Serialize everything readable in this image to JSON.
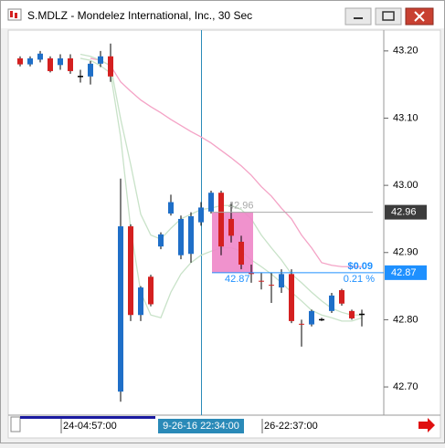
{
  "chart_data": {
    "type": "candlestick",
    "title": "S.MDLZ - Mondelez International, Inc., 30 Sec",
    "categories": [
      null,
      null,
      null,
      null,
      "24-04:57:00",
      null,
      null,
      null,
      null,
      null,
      null,
      null,
      null,
      null,
      null,
      null,
      null,
      null,
      "9-26-16 22:34:00",
      null,
      null,
      null,
      null,
      null,
      "26-22:37:00",
      null,
      null,
      null,
      null,
      null,
      null,
      null,
      null,
      null,
      null
    ],
    "open": [
      43.189,
      43.18,
      43.187,
      43.189,
      43.179,
      43.189,
      43.162,
      43.162,
      43.181,
      43.192,
      42.693,
      42.939,
      42.807,
      42.864,
      42.909,
      42.958,
      42.896,
      42.898,
      42.945,
      42.961,
      42.989,
      42.95,
      42.916,
      42.87,
      42.858,
      42.852,
      42.848,
      42.868,
      42.794,
      42.793,
      42.8,
      42.813,
      42.844,
      42.813,
      42.808
    ],
    "high": [
      43.192,
      43.192,
      43.2,
      43.192,
      43.195,
      43.195,
      43.172,
      43.185,
      43.2,
      43.211,
      43.01,
      42.942,
      42.85,
      42.867,
      42.93,
      42.986,
      42.955,
      42.96,
      42.975,
      42.992,
      42.992,
      42.975,
      42.925,
      42.882,
      42.87,
      42.87,
      42.875,
      42.875,
      42.8,
      42.815,
      42.803,
      42.84,
      42.846,
      42.815,
      42.815
    ],
    "low": [
      43.177,
      43.177,
      43.183,
      43.168,
      43.172,
      43.166,
      43.153,
      43.15,
      43.176,
      43.154,
      42.678,
      42.798,
      42.798,
      42.82,
      42.905,
      42.955,
      42.89,
      42.885,
      42.94,
      42.958,
      42.896,
      42.915,
      42.875,
      42.855,
      42.845,
      42.825,
      42.84,
      42.795,
      42.76,
      42.79,
      42.798,
      42.81,
      42.821,
      42.8,
      42.79
    ],
    "close": [
      43.18,
      43.189,
      43.196,
      43.17,
      43.189,
      43.17,
      43.162,
      43.181,
      43.192,
      43.162,
      42.939,
      42.807,
      42.848,
      42.823,
      42.927,
      42.975,
      42.95,
      42.954,
      42.967,
      42.989,
      42.909,
      42.925,
      42.882,
      42.868,
      42.857,
      42.851,
      42.868,
      42.798,
      42.793,
      42.813,
      42.8,
      42.836,
      42.824,
      42.802,
      42.808
    ],
    "up_color": "#1f6fc8",
    "down_color": "#d42020",
    "overlays": [
      {
        "color": "#f4a3c6",
        "values": [
          null,
          null,
          null,
          null,
          null,
          null,
          null,
          43.189,
          43.186,
          43.178,
          43.154,
          43.14,
          43.127,
          43.117,
          43.108,
          43.098,
          43.089,
          43.08,
          43.072,
          43.063,
          43.052,
          43.041,
          43.029,
          43.015,
          42.998,
          42.984,
          42.966,
          42.95,
          42.926,
          42.907,
          42.885,
          42.881,
          42.879,
          42.879,
          42.879
        ]
      },
      {
        "color": "#c8e2c8",
        "values": [
          null,
          null,
          null,
          null,
          null,
          null,
          43.195,
          43.192,
          43.186,
          43.178,
          43.099,
          43.031,
          42.957,
          42.926,
          42.92,
          42.936,
          42.95,
          42.957,
          42.964,
          42.966,
          42.97,
          42.97,
          42.964,
          42.95,
          42.926,
          42.907,
          42.889,
          42.868,
          42.855,
          42.841,
          42.828,
          42.817,
          42.811,
          42.807,
          42.807
        ]
      },
      {
        "color": "#c8e2c8",
        "values": [
          null,
          null,
          null,
          null,
          null,
          null,
          43.189,
          43.186,
          43.178,
          43.167,
          43.072,
          42.936,
          42.841,
          42.807,
          42.803,
          42.841,
          42.868,
          42.885,
          42.896,
          42.902,
          42.907,
          42.907,
          42.902,
          42.889,
          42.879,
          42.868,
          42.855,
          42.841,
          42.828,
          42.814,
          42.807,
          42.803,
          42.798,
          42.798,
          42.803
        ]
      }
    ],
    "ylim": [
      42.658,
      43.231
    ],
    "yticks": [
      {
        "value": 42.7,
        "label": "42.70"
      },
      {
        "value": 42.8,
        "label": "42.80"
      },
      {
        "value": 42.9,
        "label": "42.90"
      },
      {
        "value": 43.0,
        "label": "43.00"
      },
      {
        "value": 43.1,
        "label": "43.10"
      },
      {
        "value": 43.2,
        "label": "43.20"
      }
    ],
    "price_lines": [
      {
        "value": 42.96,
        "color": "#a8a8a8",
        "label_bg": "#3c3c3c"
      },
      {
        "value": 42.87,
        "color": "#1e90ff",
        "label_bg": "#1e90ff"
      }
    ],
    "measure": {
      "color": "#ee86c8",
      "change": {
        "value": 0.09,
        "label": "$0.09"
      },
      "percent": {
        "value": 0.21,
        "label": "0.21 %"
      }
    },
    "crosshair_color": "#2a8ab8"
  }
}
